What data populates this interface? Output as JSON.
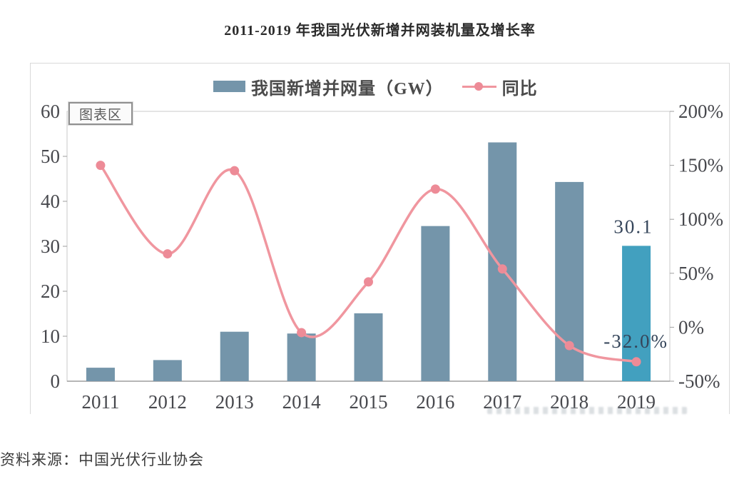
{
  "title": "2011-2019 年我国光伏新增并网装机量及增长率",
  "source": "资料来源：中国光伏行业协会",
  "plot_area_tag": "图表区",
  "legend": {
    "bar_label": "我国新增并网量（GW）",
    "line_label": "同比"
  },
  "colors": {
    "bar": "#7495aa",
    "bar_highlight": "#42a0bf",
    "line": "#f0969f",
    "point": "#ed8b97",
    "plot_border": "#c9c9c9",
    "axis_line": "#9e9e9e",
    "tick_text": "#47484d",
    "data_label_text": "#35455a"
  },
  "chart_data": {
    "type": "bar",
    "title": "2011-2019 年我国光伏新增并网装机量及增长率",
    "categories": [
      "2011",
      "2012",
      "2013",
      "2014",
      "2015",
      "2016",
      "2017",
      "2018",
      "2019"
    ],
    "series": [
      {
        "name": "我国新增并网量（GW）",
        "type": "bar",
        "axis": "left",
        "values": [
          3.0,
          4.7,
          11.0,
          10.6,
          15.1,
          34.5,
          53.1,
          44.3,
          30.1
        ]
      },
      {
        "name": "同比",
        "type": "line",
        "axis": "right",
        "values": [
          150,
          68,
          145,
          -5,
          42,
          128,
          54,
          -17,
          -32
        ]
      }
    ],
    "left_axis": {
      "min": 0,
      "max": 60,
      "step": 10,
      "tick_labels_top_down": [
        "60",
        "50",
        "40",
        "30",
        "20",
        "10",
        "0"
      ]
    },
    "right_axis": {
      "min": -50,
      "max": 200,
      "step": 50,
      "tick_labels_top_down": [
        "200%",
        "150%",
        "100%",
        "50%",
        "0%",
        "-50%"
      ]
    },
    "data_labels": [
      {
        "category": "2019",
        "series": "bar",
        "text": "30.1"
      },
      {
        "category": "2019",
        "series": "line",
        "text": "-32.0%"
      }
    ],
    "grid": false,
    "legend_position": "top"
  }
}
